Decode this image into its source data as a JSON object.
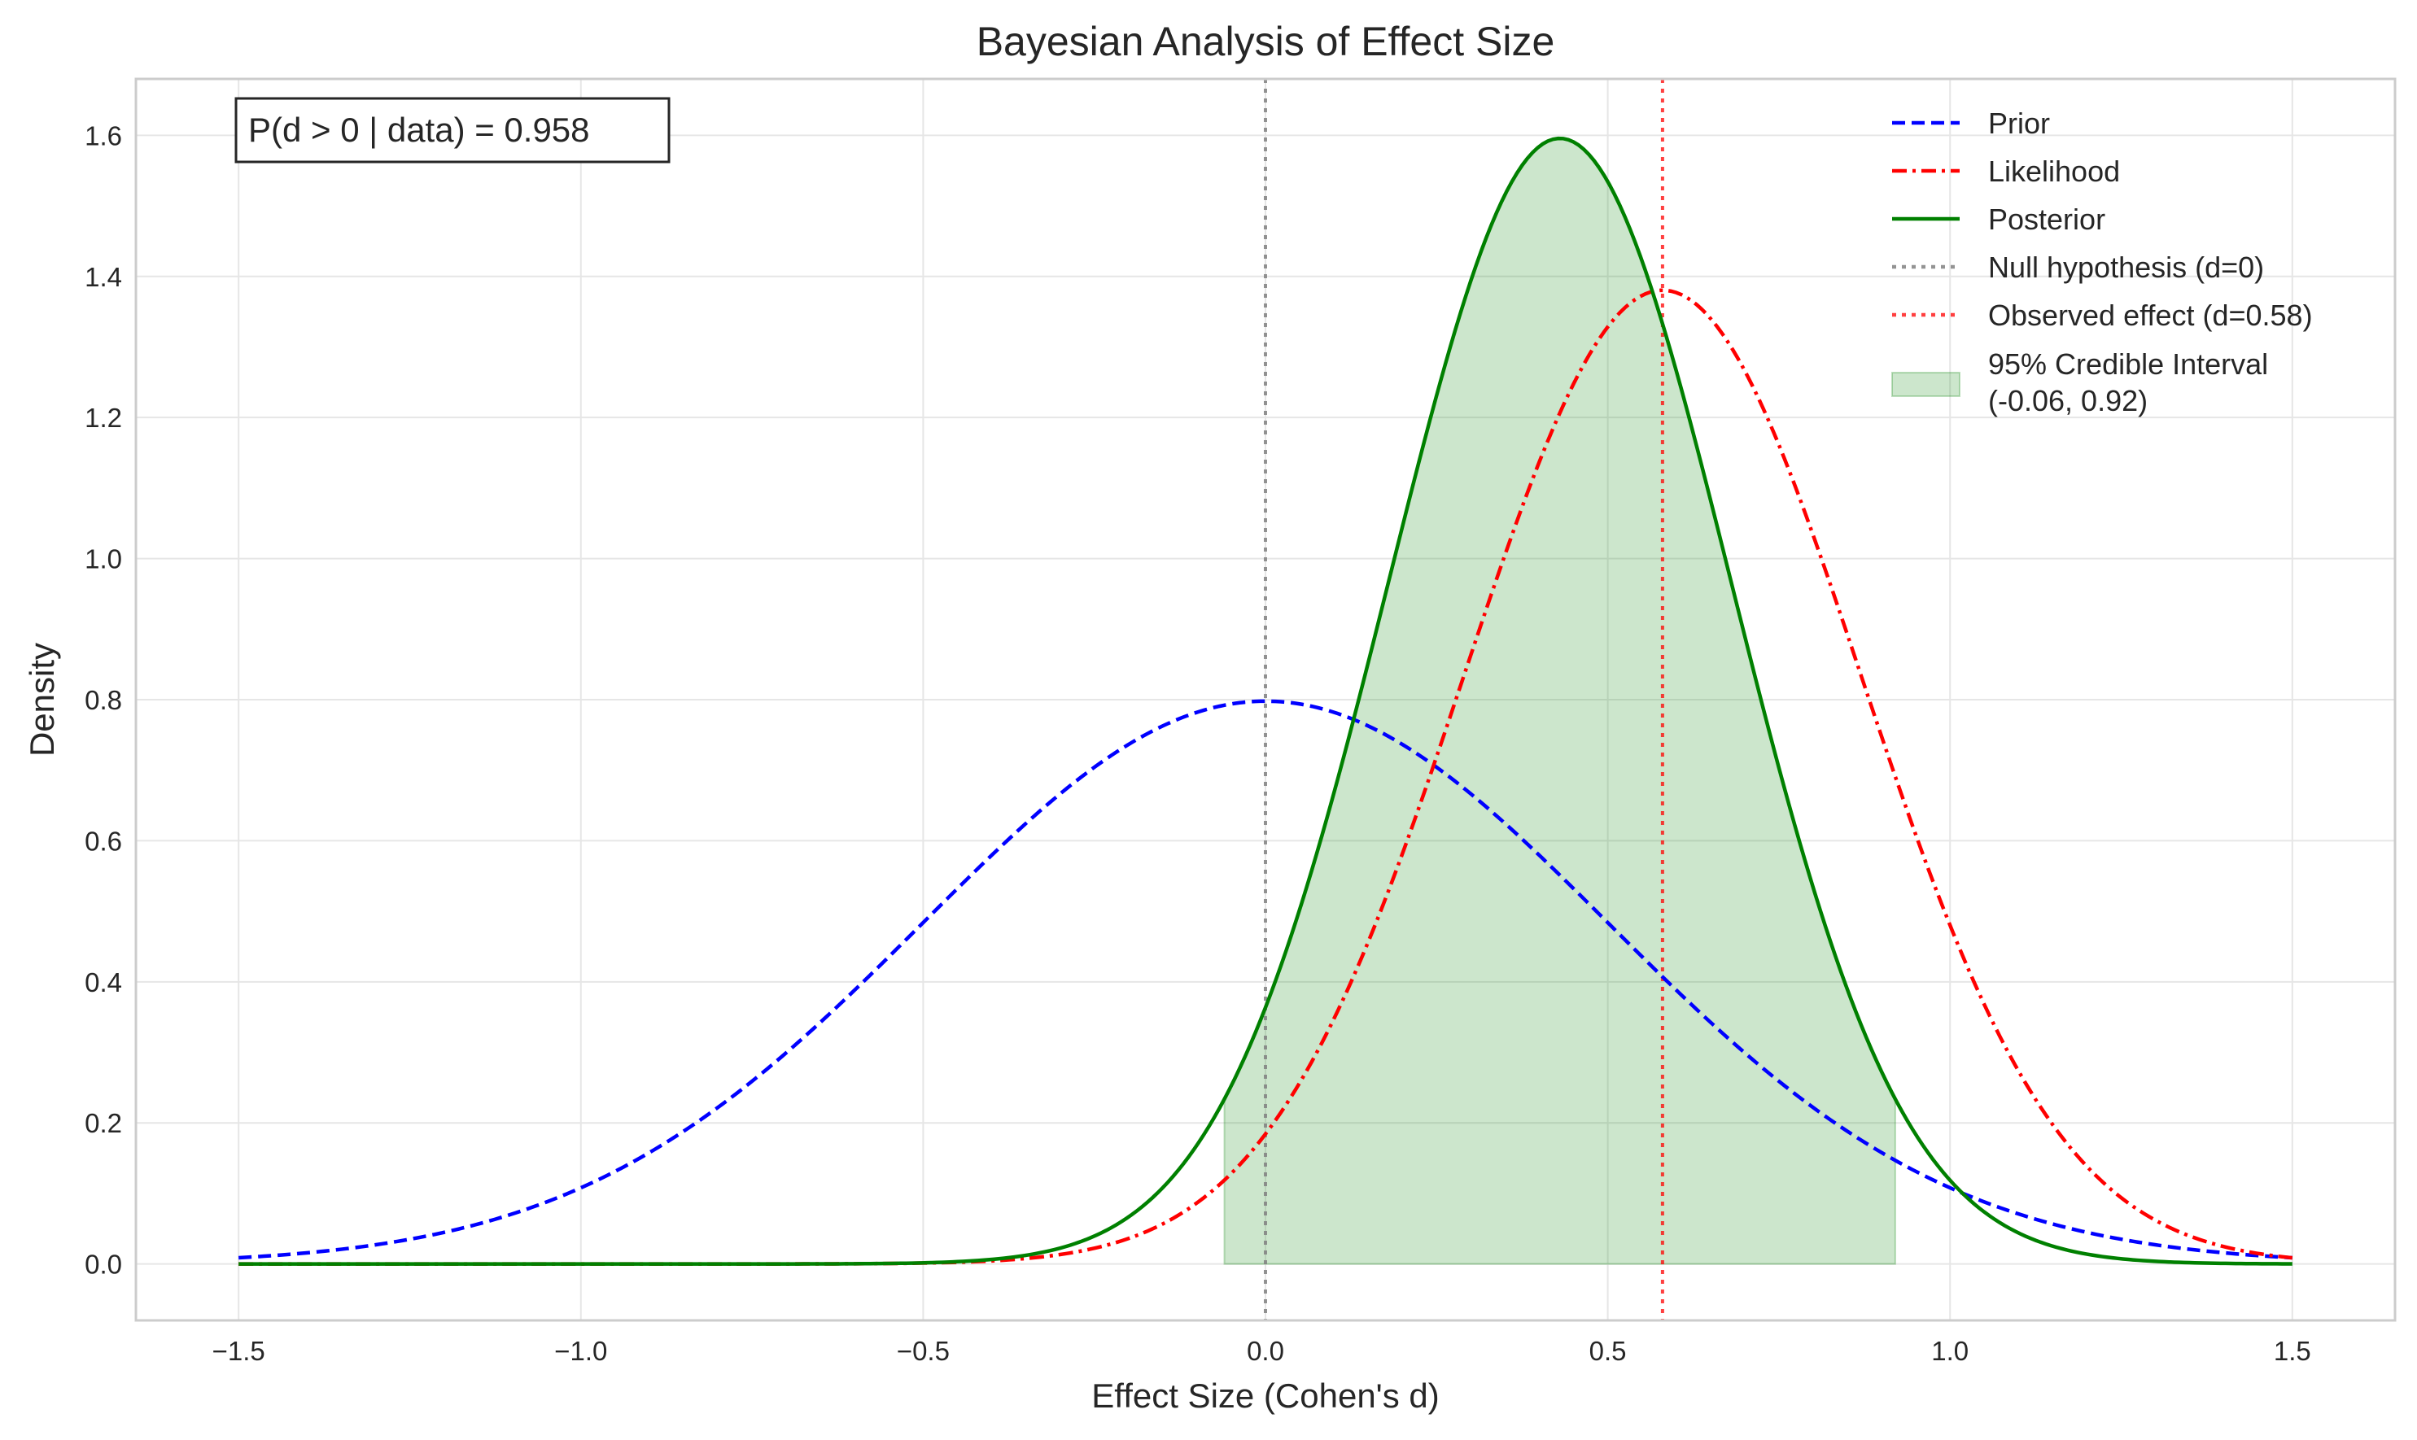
{
  "chart_data": {
    "type": "line",
    "title": "Bayesian Analysis of Effect Size",
    "xlabel": "Effect Size (Cohen's d)",
    "ylabel": "Density",
    "xlim": [
      -1.65,
      1.65
    ],
    "ylim": [
      -0.08,
      1.68
    ],
    "xticks": [
      -1.5,
      -1.0,
      -0.5,
      0.0,
      0.5,
      1.0,
      1.5
    ],
    "xtick_labels": [
      "−1.5",
      "−1.0",
      "−0.5",
      "0.0",
      "0.5",
      "1.0",
      "1.5"
    ],
    "yticks": [
      0.0,
      0.2,
      0.4,
      0.6,
      0.8,
      1.0,
      1.2,
      1.4,
      1.6
    ],
    "ytick_labels": [
      "0.0",
      "0.2",
      "0.4",
      "0.6",
      "0.8",
      "1.0",
      "1.2",
      "1.4",
      "1.6"
    ],
    "grid": true,
    "x_range": [
      -1.5,
      1.5
    ],
    "series": [
      {
        "name": "Prior",
        "dist": "normal",
        "mean": 0.0,
        "sd": 0.5,
        "color": "#0000ff",
        "style": "dashed"
      },
      {
        "name": "Likelihood",
        "dist": "normal",
        "mean": 0.58,
        "sd": 0.289,
        "color": "#ff0000",
        "style": "dashdot"
      },
      {
        "name": "Posterior",
        "dist": "normal",
        "mean": 0.43,
        "sd": 0.25,
        "color": "#008000",
        "style": "solid"
      }
    ],
    "vlines": [
      {
        "name": "Null hypothesis (d=0)",
        "x": 0.0,
        "color": "#808080",
        "style": "dotted"
      },
      {
        "name": "Observed effect (d=0.58)",
        "x": 0.58,
        "color": "#ff0000",
        "style": "dotted"
      }
    ],
    "credible_interval": {
      "name": "95% Credible Interval",
      "range_label": "(-0.06, 0.92)",
      "lower": -0.06,
      "upper": 0.92,
      "color": "#008000"
    },
    "annotation": {
      "text": "P(d > 0 | data) = 0.958",
      "x": -1.45,
      "y": 1.6
    },
    "legend_position": "top-right"
  }
}
